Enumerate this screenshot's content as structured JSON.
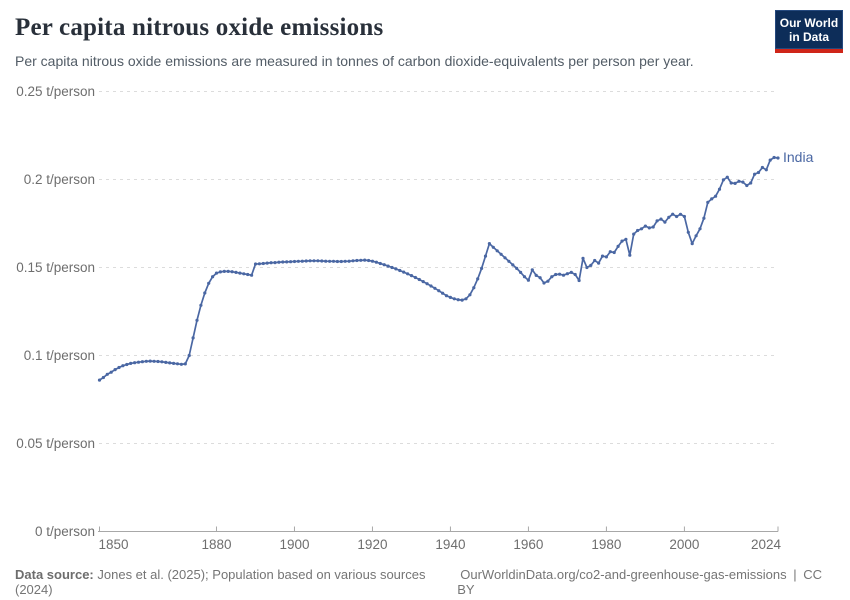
{
  "header": {
    "title": "Per capita nitrous oxide emissions",
    "subtitle": "Per capita nitrous oxide emissions are measured in tonnes of carbon dioxide-equivalents per person per year.",
    "logo": {
      "line1": "Our World",
      "line2": "in Data"
    }
  },
  "chart_data": {
    "type": "line",
    "title": "Per capita nitrous oxide emissions",
    "unit": "t/person",
    "x_range": [
      1850,
      2024
    ],
    "ylim": [
      0,
      0.25
    ],
    "grid": "horizontal-dashed",
    "legend_position": "end-of-line-label",
    "x_ticks": [
      1850,
      1880,
      1900,
      1920,
      1940,
      1960,
      1980,
      2000,
      2024
    ],
    "y_ticks": [
      {
        "value": 0,
        "label": "0 t/person"
      },
      {
        "value": 0.05,
        "label": "0.05 t/person"
      },
      {
        "value": 0.1,
        "label": "0.1 t/person"
      },
      {
        "value": 0.15,
        "label": "0.15 t/person"
      },
      {
        "value": 0.2,
        "label": "0.2 t/person"
      },
      {
        "value": 0.25,
        "label": "0.25 t/person"
      }
    ],
    "series": [
      {
        "name": "India",
        "color": "#4a67a3",
        "start_year": 1850,
        "end_year": 2024,
        "values": [
          0.086,
          0.0875,
          0.0893,
          0.0905,
          0.092,
          0.0932,
          0.0942,
          0.0949,
          0.0955,
          0.0959,
          0.0962,
          0.0965,
          0.0967,
          0.0968,
          0.0967,
          0.0966,
          0.0964,
          0.0961,
          0.0958,
          0.0955,
          0.0953,
          0.095,
          0.0952,
          0.1,
          0.11,
          0.12,
          0.1285,
          0.1355,
          0.141,
          0.1448,
          0.1468,
          0.1475,
          0.1478,
          0.1478,
          0.1476,
          0.1472,
          0.1468,
          0.1464,
          0.146,
          0.1456,
          0.152,
          0.1521,
          0.1523,
          0.1525,
          0.1527,
          0.1528,
          0.153,
          0.1531,
          0.1532,
          0.1533,
          0.1534,
          0.1535,
          0.1536,
          0.1537,
          0.1538,
          0.1538,
          0.1538,
          0.1537,
          0.1536,
          0.1535,
          0.1535,
          0.1534,
          0.1534,
          0.1535,
          0.1536,
          0.1538,
          0.154,
          0.1541,
          0.1542,
          0.154,
          0.1536,
          0.153,
          0.1523,
          0.1516,
          0.1508,
          0.15,
          0.1492,
          0.1483,
          0.1474,
          0.1464,
          0.1454,
          0.1443,
          0.1432,
          0.142,
          0.1408,
          0.1395,
          0.1382,
          0.1368,
          0.1354,
          0.134,
          0.133,
          0.1322,
          0.1317,
          0.1315,
          0.1322,
          0.1345,
          0.1385,
          0.1435,
          0.1495,
          0.1565,
          0.1636,
          0.1615,
          0.1595,
          0.1575,
          0.1555,
          0.1535,
          0.1515,
          0.1495,
          0.1472,
          0.1448,
          0.1428,
          0.1487,
          0.1455,
          0.1442,
          0.1412,
          0.1422,
          0.1448,
          0.146,
          0.1462,
          0.1456,
          0.1465,
          0.1472,
          0.146,
          0.1426,
          0.1552,
          0.15,
          0.1512,
          0.154,
          0.1525,
          0.1565,
          0.156,
          0.159,
          0.1585,
          0.162,
          0.165,
          0.166,
          0.157,
          0.169,
          0.171,
          0.172,
          0.1735,
          0.1725,
          0.173,
          0.1765,
          0.1775,
          0.1758,
          0.1785,
          0.1803,
          0.179,
          0.1802,
          0.179,
          0.17,
          0.1636,
          0.168,
          0.172,
          0.178,
          0.187,
          0.189,
          0.1905,
          0.1945,
          0.1998,
          0.2013,
          0.198,
          0.1978,
          0.199,
          0.1985,
          0.1966,
          0.198,
          0.203,
          0.204,
          0.2068,
          0.2055,
          0.211,
          0.2125,
          0.2122
        ]
      }
    ]
  },
  "footer": {
    "source_label": "Data source:",
    "source_text": "Jones et al. (2025); Population based on various sources (2024)",
    "link_text": "OurWorldinData.org/co2-and-greenhouse-gas-emissions",
    "separator": "|",
    "license": "CC BY"
  },
  "colors": {
    "series_line": "#4a67a3",
    "grid_line": "#dcdcdc",
    "axis_line": "#a8a8a8",
    "tick_text": "#6e6e6e",
    "logo_navy": "#0d2d59",
    "logo_red": "#cf2518",
    "title_text": "#29303a"
  }
}
